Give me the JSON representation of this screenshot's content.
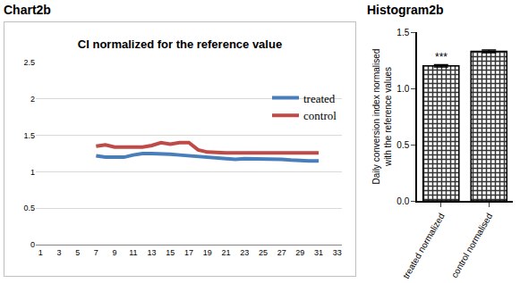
{
  "chart_data": [
    {
      "label": "Chart2b",
      "type": "line",
      "title": "CI normalized for the reference value",
      "x": [
        7,
        8,
        9,
        10,
        11,
        12,
        13,
        14,
        15,
        16,
        17,
        18,
        19,
        20,
        21,
        22,
        23,
        24,
        25,
        26,
        27,
        28,
        29,
        30,
        31
      ],
      "series": [
        {
          "name": "treated",
          "color": "#4a7ebb",
          "values": [
            1.22,
            1.2,
            1.2,
            1.2,
            1.23,
            1.25,
            1.25,
            1.25,
            1.24,
            1.23,
            1.22,
            1.2,
            1.19,
            1.18,
            1.18,
            1.17,
            1.18,
            1.18,
            1.17,
            1.17,
            1.17,
            1.16,
            1.15,
            1.15,
            1.15
          ]
        },
        {
          "name": "control",
          "color": "#be4b48",
          "values": [
            1.35,
            1.37,
            1.34,
            1.34,
            1.35,
            1.34,
            1.36,
            1.4,
            1.38,
            1.4,
            1.4,
            1.3,
            1.27,
            1.26,
            1.26,
            1.26,
            1.26,
            1.26,
            1.26,
            1.27,
            1.26,
            1.26,
            1.26,
            1.26,
            1.26
          ]
        }
      ],
      "xlim": [
        0.5,
        33.5
      ],
      "xticks": [
        1,
        3,
        5,
        7,
        9,
        11,
        13,
        15,
        17,
        19,
        21,
        23,
        25,
        27,
        29,
        31,
        33
      ],
      "ylim": [
        0,
        2.5
      ],
      "yticks": [
        0,
        0.5,
        1,
        1.5,
        2,
        2.5
      ],
      "grid": true,
      "legend": "top right"
    },
    {
      "label": "Histogram2b",
      "type": "bar",
      "ylabel": [
        "Daily conversion index normalised",
        "with the reference values"
      ],
      "categories": [
        "treated normalized",
        "control normalised"
      ],
      "values": [
        1.2,
        1.33
      ],
      "errors": [
        0.01,
        0.012
      ],
      "color": "#333333",
      "ylim": [
        0,
        1.5
      ],
      "yticks": [
        {
          "value": 0,
          "label": "0.0"
        },
        {
          "value": 0.5,
          "label": "0.5"
        },
        {
          "value": 1,
          "label": "1.0"
        },
        {
          "value": 1.5,
          "label": "1.5"
        }
      ],
      "annotations": [
        {
          "category": "treated normalized",
          "text": "***"
        }
      ],
      "grid": false
    }
  ]
}
